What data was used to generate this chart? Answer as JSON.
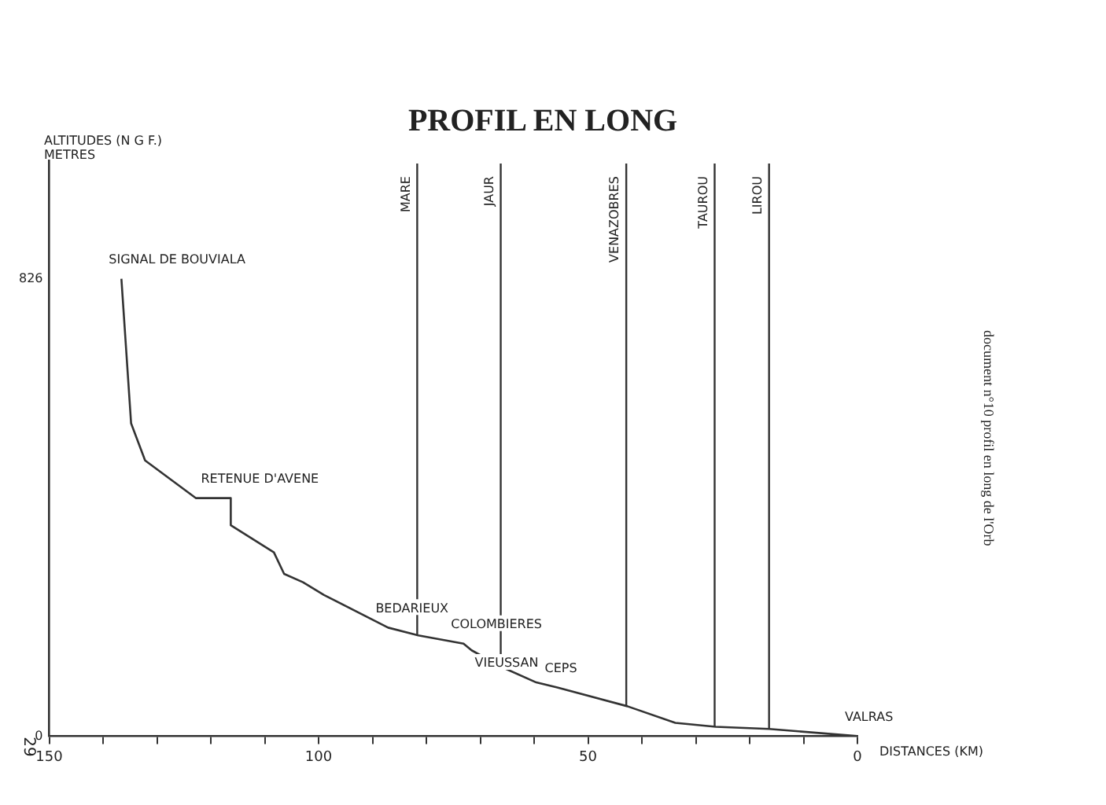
{
  "chart_data": {
    "type": "line",
    "title": "PROFIL EN LONG",
    "xlabel": "DISTANCES (KM)",
    "ylabel": "ALTITUDES (N G F.) METRES",
    "x": [
      136.6,
      134.8,
      132.2,
      122.8,
      116.3,
      116.3,
      108.3,
      106.4,
      102.9,
      99.0,
      87.1,
      81.5,
      73.1,
      71.6,
      65.6,
      59.6,
      55.7,
      42.7,
      33.8,
      26.3,
      16.4,
      0
    ],
    "values": [
      826,
      565,
      498,
      430,
      430,
      381,
      332,
      293,
      278,
      255,
      196,
      182,
      167,
      155,
      123,
      97,
      88,
      54,
      24,
      17,
      13,
      0
    ],
    "color": "#333333",
    "marker": "none",
    "line_style": "solid",
    "grid": false,
    "legend": false,
    "xlim": [
      150,
      0
    ],
    "xticks": [
      150,
      {
        "value": 140,
        "label": null
      },
      {
        "value": 130,
        "label": null
      },
      {
        "value": 120,
        "label": null
      },
      {
        "value": 110,
        "label": null
      },
      100,
      {
        "value": 90,
        "label": null
      },
      {
        "value": 80,
        "label": null
      },
      {
        "value": 70,
        "label": null
      },
      {
        "value": 60,
        "label": null
      },
      50,
      {
        "value": 40,
        "label": null
      },
      {
        "value": 30,
        "label": null
      },
      {
        "value": 20,
        "label": null
      },
      {
        "value": 10,
        "label": null
      },
      0
    ],
    "ylim": [
      0,
      1040
    ],
    "yticks": [
      0,
      826
    ],
    "ref_lines": [
      {
        "axis": "x",
        "value": 81.7,
        "label": "MARE"
      },
      {
        "axis": "x",
        "value": 66.2,
        "label": "JAUR"
      },
      {
        "axis": "x",
        "value": 42.9,
        "label": "VENAZOBRES"
      },
      {
        "axis": "x",
        "value": 26.5,
        "label": "TAUROU"
      },
      {
        "axis": "x",
        "value": 16.4,
        "label": "LIROU"
      }
    ],
    "annotations": [
      {
        "text": "SIGNAL DE BOUVIALA",
        "x": 136.6,
        "y": 826
      },
      {
        "text": "RETENUE D'AVENE",
        "x": 119.5,
        "y": 430
      },
      {
        "text": "BEDARIEUX",
        "x": 87.1,
        "y": 196
      },
      {
        "text": "COLOMBIERES",
        "x": 73.1,
        "y": 167
      },
      {
        "text": "VIEUSSAN",
        "x": 59.6,
        "y": 97
      },
      {
        "text": "CEPS",
        "x": 55.7,
        "y": 88
      },
      {
        "text": "VALRAS",
        "x": 0,
        "y": 0
      },
      "document n°10 profil en long de l'Orb",
      "29"
    ]
  }
}
